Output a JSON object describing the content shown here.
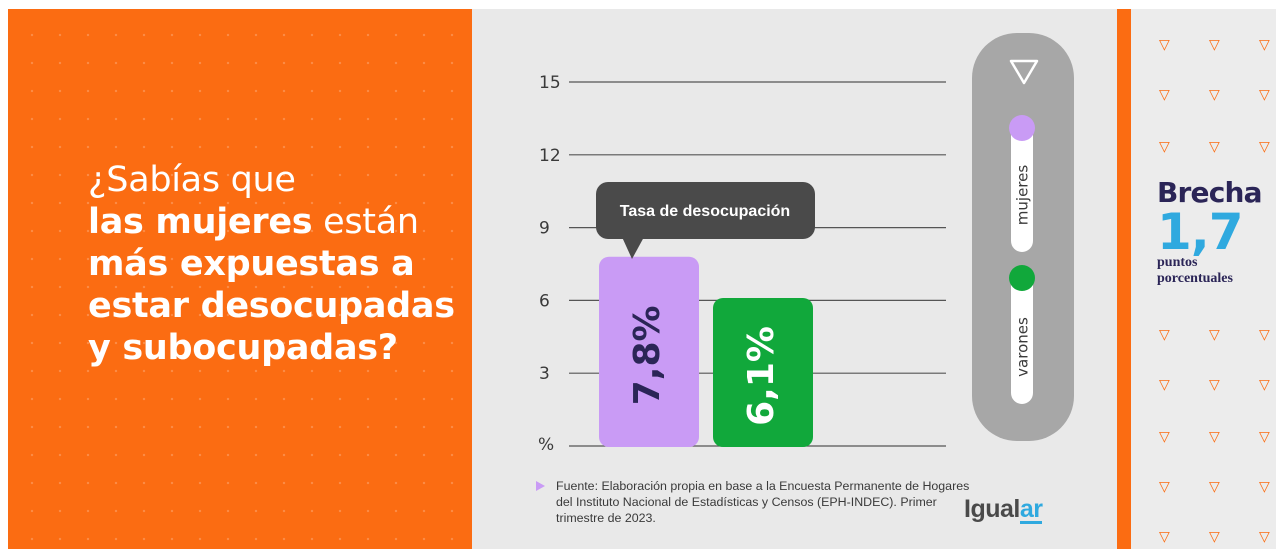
{
  "headline": {
    "line1": "¿Sabías que",
    "line2_bold": "las mujeres",
    "line2_rest": " están",
    "line3": "más expuestas a",
    "line4": "estar desocupadas",
    "line5": "y subocupadas?"
  },
  "chart_data": {
    "type": "bar",
    "title": "",
    "callout": "Tasa de desocupación",
    "ylabel": "%",
    "ylim": [
      0,
      15
    ],
    "yticks": [
      3,
      6,
      9,
      12,
      15
    ],
    "categories": [
      "mujeres",
      "varones"
    ],
    "values": [
      7.8,
      6.1
    ],
    "value_labels": [
      "7,8%",
      "6,1%"
    ],
    "colors": [
      "#c99bf5",
      "#11a83b"
    ],
    "grid": true,
    "legend_position": "right",
    "legend": [
      {
        "label": "mujeres",
        "color": "#c99bf5"
      },
      {
        "label": "varones",
        "color": "#11a83b"
      }
    ]
  },
  "source": "Fuente: Elaboración propia en base a la Encuesta Permanente de Hogares del Instituto Nacional de Estadísticas y Censos (EPH-INDEC). Primer trimestre de 2023.",
  "logo": {
    "part1": "Igual",
    "part2": "ar"
  },
  "brecha": {
    "title": "Brecha",
    "value": "1,7",
    "unit_line1": "puntos",
    "unit_line2": "porcentuales"
  },
  "icons": {
    "legend_arrow": "triangle-down-outline-icon",
    "pattern": "triangle-down-outline-icon"
  }
}
